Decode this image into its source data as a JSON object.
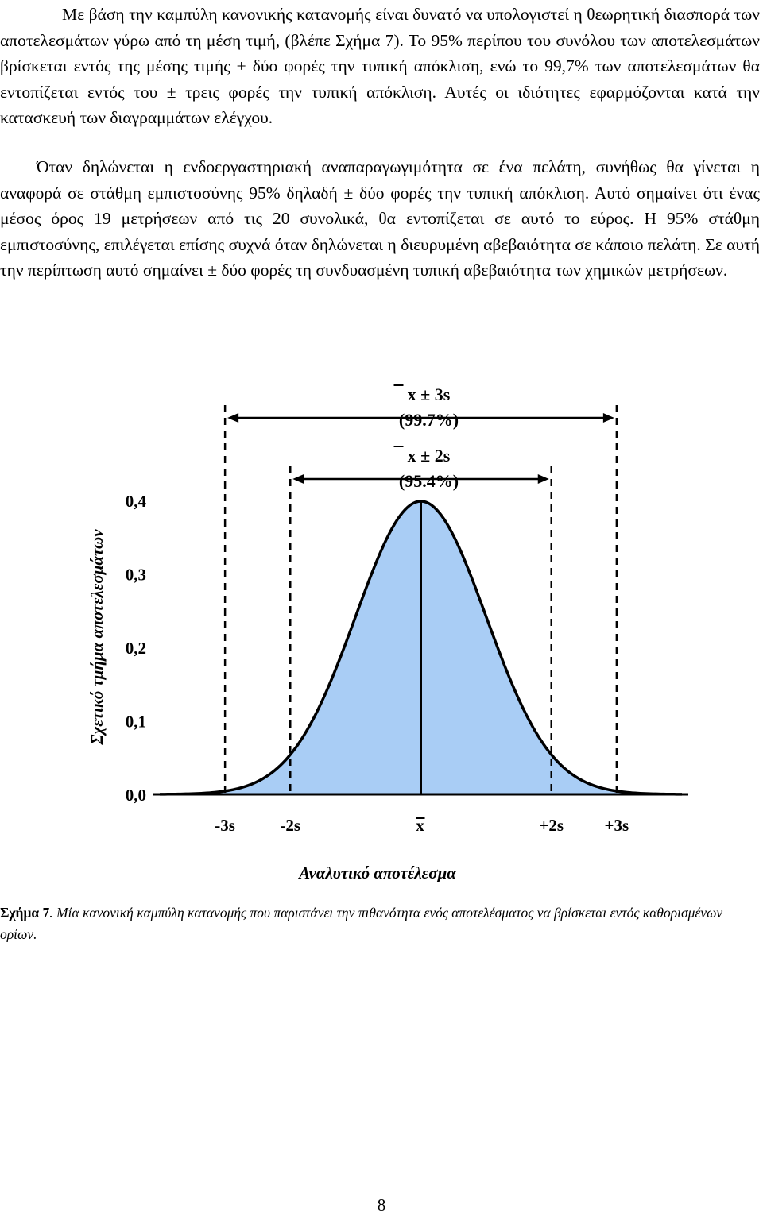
{
  "paragraphs": [
    "Με βάση την καμπύλη κανονικής κατανομής είναι δυνατό να υπολογιστεί η θεωρητική διασπορά των αποτελεσμάτων γύρω από τη μέση τιμή, (βλέπε Σχήμα 7). Το 95% περίπου του συνόλου των αποτελεσμάτων βρίσκεται εντός της μέσης τιμής ± δύο φορές την τυπική απόκλιση, ενώ το 99,7% των αποτελεσμάτων θα εντοπίζεται εντός του ± τρεις φορές την τυπική απόκλιση. Αυτές οι ιδιότητες εφαρμόζονται κατά την κατασκευή των διαγραμμάτων ελέγχου.",
    "Όταν δηλώνεται η ενδοεργαστηριακή αναπαραγωγιμότητα σε ένα πελάτη, συνήθως θα γίνεται η αναφορά σε στάθμη εμπιστοσύνης 95% δηλαδή ± δύο φορές την τυπική από­κλιση. Αυτό σημαίνει ότι ένας μέσος όρος 19 μετρήσεων από τις 20 συνολικά, θα εντοπίζεται σε αυτό το εύρος. Η 95% στάθμη εμπιστοσύνης, επιλέγεται επίσης συχνά όταν δηλώνεται η διευρυμένη αβεβαιότητα σε κάποιο πελάτη. Σε αυτή την περίπτωση αυτό σημαίνει ± δύο φορές τη συνδυασμένη τυπική αβεβαιότητα των χημικών μετρήσεων."
  ],
  "chart_data": {
    "type": "area",
    "distribution": "normal",
    "xlabel": "Αναλυτικό αποτέλεσμα",
    "ylabel": "Σχετικό τμήμα αποτελεσμάτων",
    "x_ticks": [
      -3,
      -2,
      0,
      2,
      3
    ],
    "x_tick_labels": [
      "-3s",
      "-2s",
      "x",
      "+2s",
      "+3s"
    ],
    "x_range": [
      -4,
      4
    ],
    "y_ticks": [
      0.0,
      0.1,
      0.2,
      0.3,
      0.4
    ],
    "y_tick_labels": [
      "0,0",
      "0,1",
      "0,2",
      "0,3",
      "0,4"
    ],
    "ylim": [
      0,
      0.4
    ],
    "fill_color": "#a9cdf5",
    "curve_color": "#000000",
    "intervals": [
      {
        "from": -3,
        "to": 3,
        "label": "x ± 3s",
        "percent": "(99.7%)"
      },
      {
        "from": -2,
        "to": 2,
        "label": "x ± 2s",
        "percent": "(95.4%)"
      }
    ]
  },
  "caption": {
    "label": "Σχήμα 7",
    "text": ". Μία κανονική καμπύλη κατανομής που παριστάνει την πιθανότητα ενός αποτελέσματος να βρίσκεται εντός καθορισμένων ορίων."
  },
  "page_number": "8"
}
